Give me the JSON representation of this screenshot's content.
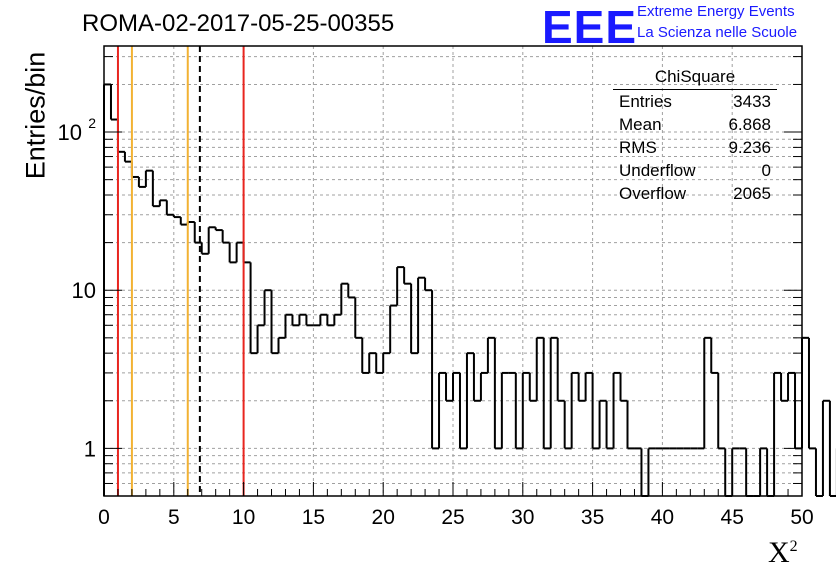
{
  "title": "ROMA-02-2017-05-25-00355",
  "logo": {
    "mark": "EEE",
    "line1": "Extreme Energy Events",
    "line2": "La Scienza nelle Scuole",
    "color": "#1a1aff"
  },
  "stats": {
    "title": "ChiSquare",
    "rows": [
      {
        "label": "Entries",
        "value": "3433"
      },
      {
        "label": "Mean",
        "value": "6.868"
      },
      {
        "label": "RMS",
        "value": "9.236"
      },
      {
        "label": "Underflow",
        "value": "0"
      },
      {
        "label": "Overflow",
        "value": "2065"
      }
    ]
  },
  "chart_data": {
    "type": "histogram",
    "xlabel": "X",
    "xlabel_sup": "2",
    "ylabel": "Entries/bin",
    "xlim": [
      0,
      50
    ],
    "ylim": [
      0.5,
      350
    ],
    "yscale": "log",
    "grid": true,
    "bin_width": 0.5,
    "x_ticks": [
      "0",
      "5",
      "10",
      "15",
      "20",
      "25",
      "30",
      "35",
      "40",
      "45",
      "50"
    ],
    "y_ticks": [
      {
        "value": 1,
        "label": "1"
      },
      {
        "value": 10,
        "label": "10"
      },
      {
        "value": 100,
        "label": "10",
        "sup": "2"
      }
    ],
    "values": [
      200,
      120,
      75,
      65,
      52,
      45,
      57,
      34,
      37,
      30,
      29,
      26,
      27,
      20,
      17,
      25,
      24,
      20,
      15,
      20,
      15,
      4,
      6,
      10,
      4,
      5,
      7,
      6,
      7,
      6,
      6,
      7,
      6,
      7,
      11,
      9,
      5,
      3,
      4,
      3,
      4,
      8,
      14,
      11,
      4,
      12,
      10,
      1,
      3,
      2,
      3,
      1,
      4,
      2,
      3,
      5,
      1,
      3,
      3,
      1,
      3,
      2,
      5,
      1,
      5,
      2,
      1,
      3,
      2,
      3,
      1,
      2,
      1,
      3,
      2,
      1,
      1,
      0.5,
      1,
      1,
      1,
      1,
      1,
      1,
      1,
      1,
      5,
      3,
      1,
      0.5,
      1,
      1,
      0.5,
      0.5,
      1,
      0.5,
      3,
      2,
      3,
      1,
      5,
      1,
      0.5,
      2,
      0.5,
      1
    ],
    "vertical_lines": [
      {
        "x": 1,
        "color": "#e8251f",
        "style": "solid"
      },
      {
        "x": 2,
        "color": "#f2b233",
        "style": "solid"
      },
      {
        "x": 6,
        "color": "#f2b233",
        "style": "solid"
      },
      {
        "x": 6.868,
        "color": "#000000",
        "style": "dashed"
      },
      {
        "x": 10,
        "color": "#e8251f",
        "style": "solid"
      }
    ]
  }
}
